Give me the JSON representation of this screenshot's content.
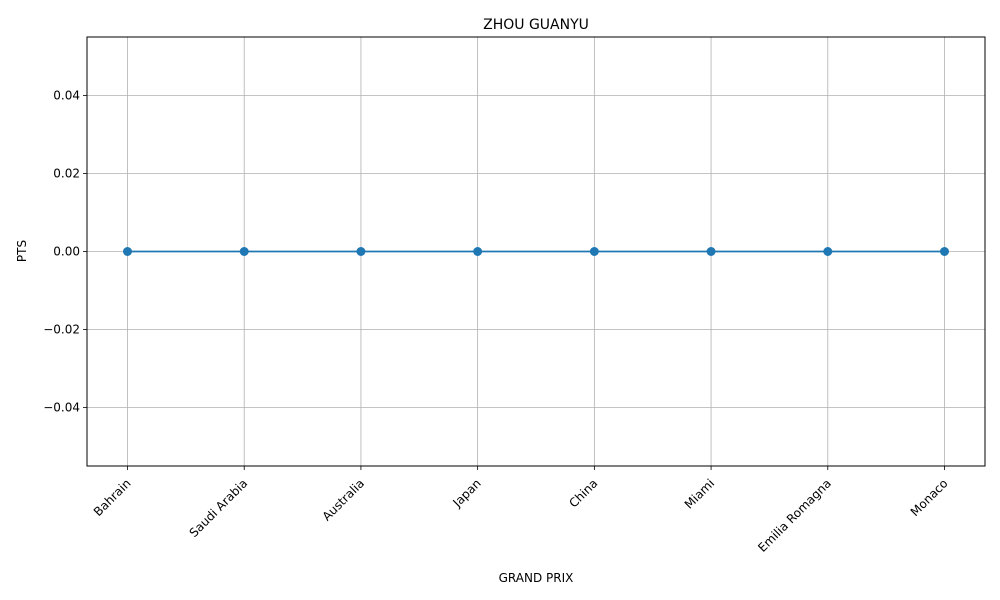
{
  "chart_data": {
    "type": "line",
    "title": "ZHOU GUANYU",
    "xlabel": "GRAND PRIX",
    "ylabel": "PTS",
    "categories": [
      "Bahrain",
      "Saudi Arabia",
      "Australia",
      "Japan",
      "China",
      "Miami",
      "Emilia Romagna",
      "Monaco"
    ],
    "series": [
      {
        "values": [
          0,
          0,
          0,
          0,
          0,
          0,
          0,
          0
        ]
      }
    ],
    "ylim": [
      -0.055,
      0.055
    ],
    "yticks": [
      -0.04,
      -0.02,
      0.0,
      0.02,
      0.04
    ],
    "ytick_labels": [
      "−0.04",
      "−0.02",
      "0.00",
      "0.02",
      "0.04"
    ],
    "grid": true,
    "marker": "circle",
    "line_color": "#1f77b4",
    "grid_color": "#b0b0b0"
  }
}
